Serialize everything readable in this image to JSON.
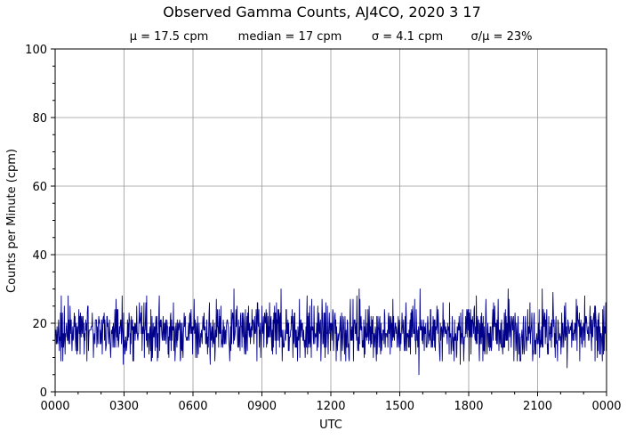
{
  "chart_data": {
    "type": "line",
    "title": "Observed Gamma Counts, AJ4CO, 2020 3 17",
    "subtitle": [
      "μ = 17.5 cpm",
      "median = 17 cpm",
      "σ = 4.1 cpm",
      "σ/μ = 23%"
    ],
    "xlabel": "UTC",
    "ylabel": "Counts per Minute (cpm)",
    "x_tick_labels": [
      "0000",
      "0300",
      "0600",
      "0900",
      "1200",
      "1500",
      "1800",
      "2100",
      "0000"
    ],
    "y_tick_labels": [
      "0",
      "20",
      "40",
      "60",
      "80",
      "100"
    ],
    "xlim_minutes": [
      0,
      1440
    ],
    "ylim": [
      0,
      100
    ],
    "grid": true,
    "line_color": "#00008b",
    "series": [
      {
        "name": "",
        "x_step_minutes": 1,
        "stats": {
          "mean": 17.5,
          "median": 17,
          "stdev": 4.1,
          "min": 5,
          "max": 30
        },
        "notable_points": [
          {
            "t_min": 16,
            "y": 28
          },
          {
            "t_min": 34,
            "y": 28
          },
          {
            "t_min": 178,
            "y": 8
          },
          {
            "t_min": 239,
            "y": 28
          },
          {
            "t_min": 405,
            "y": 8
          },
          {
            "t_min": 467,
            "y": 30
          },
          {
            "t_min": 527,
            "y": 9
          },
          {
            "t_min": 590,
            "y": 30
          },
          {
            "t_min": 638,
            "y": 27
          },
          {
            "t_min": 734,
            "y": 9
          },
          {
            "t_min": 794,
            "y": 30
          },
          {
            "t_min": 860,
            "y": 24
          },
          {
            "t_min": 953,
            "y": 30
          },
          {
            "t_min": 950,
            "y": 5
          },
          {
            "t_min": 1058,
            "y": 8
          },
          {
            "t_min": 1100,
            "y": 28
          },
          {
            "t_min": 1183,
            "y": 30
          },
          {
            "t_min": 1215,
            "y": 9
          },
          {
            "t_min": 1272,
            "y": 30
          },
          {
            "t_min": 1300,
            "y": 29
          },
          {
            "t_min": 1337,
            "y": 7
          },
          {
            "t_min": 1383,
            "y": 28
          },
          {
            "t_min": 1430,
            "y": 24
          }
        ]
      }
    ]
  }
}
